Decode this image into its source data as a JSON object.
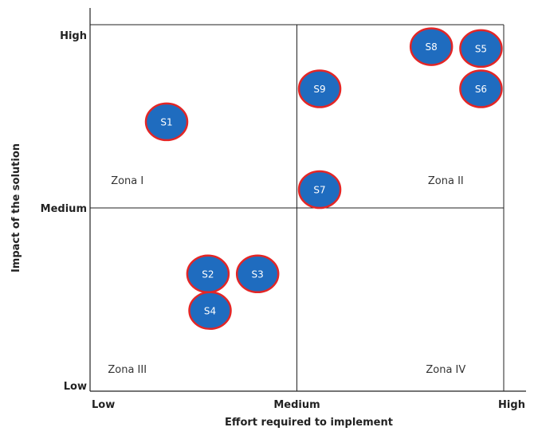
{
  "chart_data": {
    "type": "scatter",
    "title": "",
    "xlabel": "Effort required to implement",
    "ylabel": "Impact of the solution",
    "xlim": [
      0,
      2
    ],
    "ylim": [
      0,
      2
    ],
    "x_ticks": [
      {
        "value": 0,
        "label": "Low"
      },
      {
        "value": 1,
        "label": "Medium"
      },
      {
        "value": 2,
        "label": "High"
      }
    ],
    "y_ticks": [
      {
        "value": 0,
        "label": "Low"
      },
      {
        "value": 1,
        "label": "Medium"
      },
      {
        "value": 2,
        "label": "High"
      }
    ],
    "quadrant_dividers": {
      "x": 1,
      "y": 1
    },
    "zones": [
      {
        "label": "Zona I",
        "x": 0.18,
        "y": 1.13
      },
      {
        "label": "Zona II",
        "x": 1.72,
        "y": 1.13
      },
      {
        "label": "Zona III",
        "x": 0.18,
        "y": 0.1
      },
      {
        "label": "Zona IV",
        "x": 1.72,
        "y": 0.1
      }
    ],
    "points": [
      {
        "label": "S1",
        "x": 0.37,
        "y": 1.47
      },
      {
        "label": "S2",
        "x": 0.57,
        "y": 0.64
      },
      {
        "label": "S3",
        "x": 0.81,
        "y": 0.64
      },
      {
        "label": "S4",
        "x": 0.58,
        "y": 0.44
      },
      {
        "label": "S5",
        "x": 1.89,
        "y": 1.87
      },
      {
        "label": "S6",
        "x": 1.89,
        "y": 1.65
      },
      {
        "label": "S7",
        "x": 1.11,
        "y": 1.1
      },
      {
        "label": "S8",
        "x": 1.65,
        "y": 1.88
      },
      {
        "label": "S9",
        "x": 1.11,
        "y": 1.65
      }
    ],
    "marker_fill": "#1f6cbf",
    "marker_stroke": "#e32626",
    "grid": false
  }
}
